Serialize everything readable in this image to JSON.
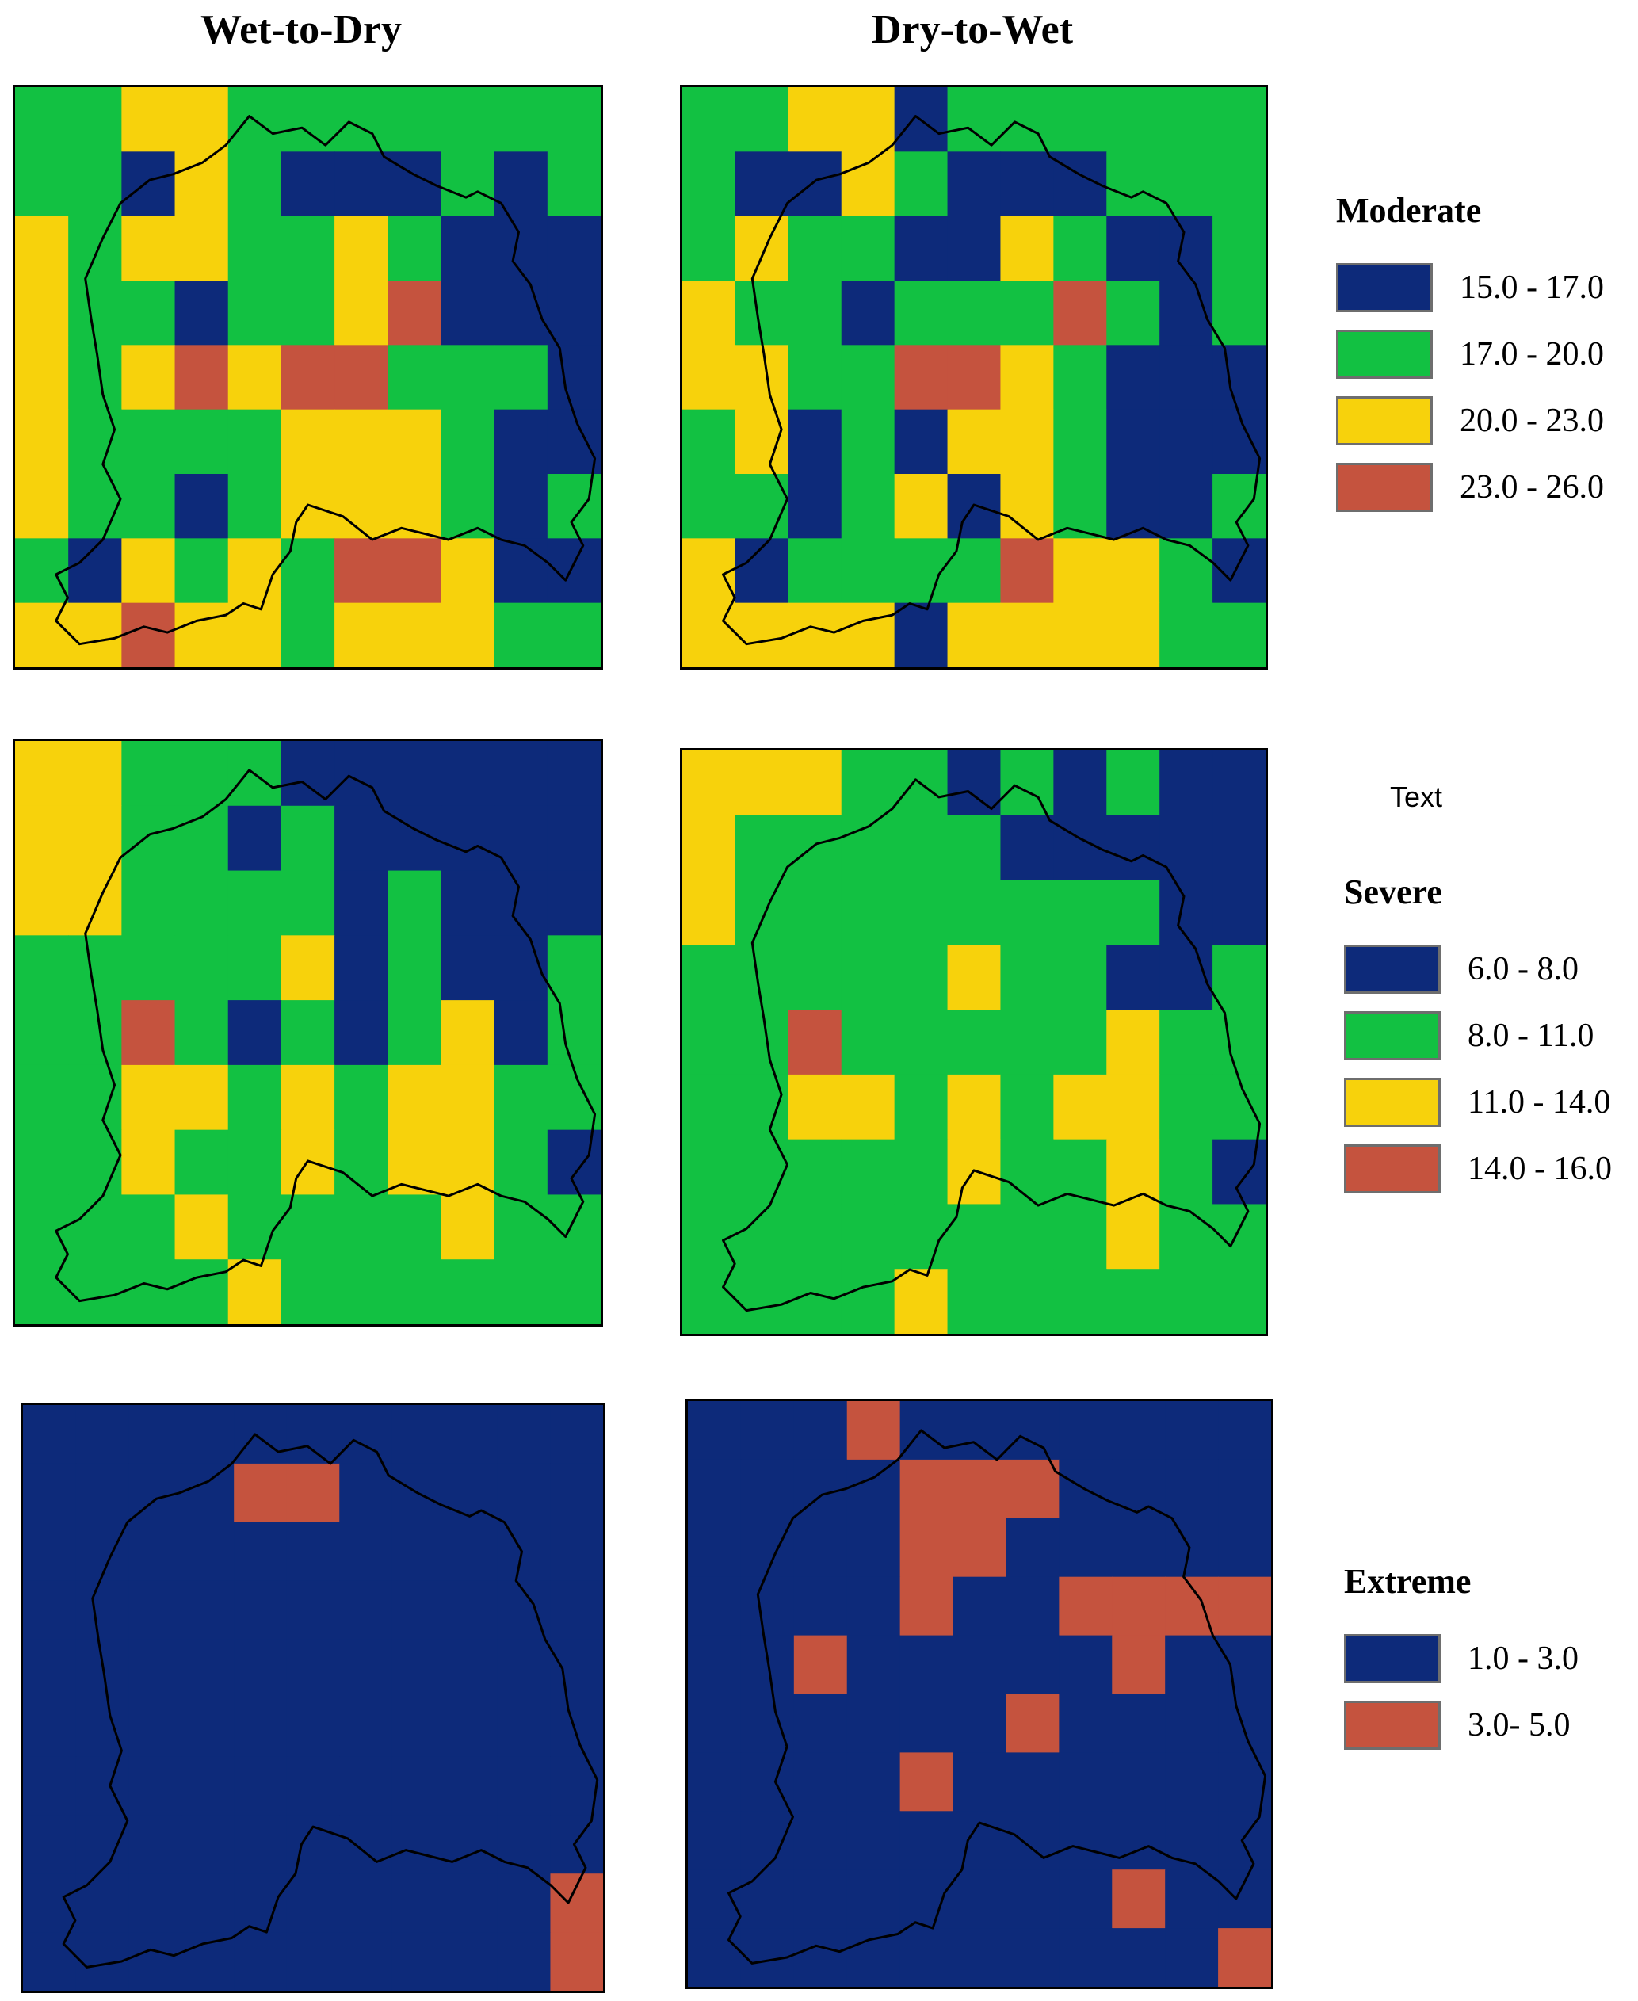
{
  "columns": [
    "Wet-to-Dry",
    "Dry-to-Wet"
  ],
  "note": "Text",
  "colors": {
    "B": "#0d2a7a",
    "G": "#12c142",
    "Y": "#f7d20c",
    "R": "#c5533e"
  },
  "legends": [
    {
      "title": "Moderate",
      "items": [
        {
          "color": "#0d2a7a",
          "label": "15.0 - 17.0"
        },
        {
          "color": "#12c142",
          "label": "17.0 - 20.0"
        },
        {
          "color": "#f7d20c",
          "label": "20.0 - 23.0"
        },
        {
          "color": "#c5533e",
          "label": "23.0 - 26.0"
        }
      ]
    },
    {
      "title": "Severe",
      "items": [
        {
          "color": "#0d2a7a",
          "label": "6.0 - 8.0"
        },
        {
          "color": "#12c142",
          "label": "8.0 - 11.0"
        },
        {
          "color": "#f7d20c",
          "label": "11.0 - 14.0"
        },
        {
          "color": "#c5533e",
          "label": "14.0 - 16.0"
        }
      ]
    },
    {
      "title": "Extreme",
      "items": [
        {
          "color": "#0d2a7a",
          "label": "1.0 - 3.0"
        },
        {
          "color": "#c5533e",
          "label": "3.0- 5.0"
        }
      ]
    }
  ],
  "maps": [
    {
      "row": "Moderate",
      "column": "Wet-to-Dry",
      "grid": [
        "GGYYGGGGGGG",
        "GGBYGBBBGBG",
        "YGYYGGYGBBB",
        "YGGBGGYRBBB",
        "YGYRYRRGGGB",
        "YGGGGYYYGBB",
        "YGGBGYYYGBG",
        "GBYGYGRRYBB",
        "YYRYYGYYYGG"
      ]
    },
    {
      "row": "Moderate",
      "column": "Dry-to-Wet",
      "grid": [
        "GGYYBGGGGGG",
        "GBBYGBBBGGG",
        "GYGGBBYGBBG",
        "YGGBGGGRGBG",
        "YYGGRRYGBBB",
        "GYBGBYYGBBB",
        "GGBGYBYGBBG",
        "YBGGGGRYYGB",
        "YYYYBYYYYGG"
      ]
    },
    {
      "row": "Severe",
      "column": "Wet-to-Dry",
      "grid": [
        "YYGGGBBBBBB",
        "YYGGBGBBBBB",
        "YYGGGGBGBBB",
        "GGGGGYBGBBG",
        "GGRGBGBGYBG",
        "GGYYGYGYYGG",
        "GGYGGYGYYGB",
        "GGGYGGGGYGG",
        "GGGGYGGGGGG"
      ]
    },
    {
      "row": "Severe",
      "column": "Dry-to-Wet",
      "grid": [
        "YYYGGBGBGBB",
        "YGGGGGBBBBB",
        "YGGGGGGGGBB",
        "GGGGGYGGBBG",
        "GGRGGGGGYGG",
        "GGYYGYGYYGG",
        "GGGGGYGGYGB",
        "GGGGGGGGYGG",
        "GGGGYGGGGGG"
      ]
    },
    {
      "row": "Extreme",
      "column": "Wet-to-Dry",
      "grid": [
        "BBBBBBBBBBB",
        "BBBBRRBBBBB",
        "BBBBBBBBBBB",
        "BBBBBBBBBBB",
        "BBBBBBBBBBB",
        "BBBBBBBBBBB",
        "BBBBBBBBBBB",
        "BBBBBBBBBBB",
        "BBBBBBBBBBR",
        "BBBBBBBBBBR"
      ]
    },
    {
      "row": "Extreme",
      "column": "Dry-to-Wet",
      "grid": [
        "BBBRBBBBBBB",
        "BBBBRRRBBBB",
        "BBBBRRBBBBB",
        "BBBBRBBRRRR",
        "BBRBBBBBRBB",
        "BBBBBBRBBBB",
        "BBBBRBBBBBB",
        "BBBBBBBBBBB",
        "BBBBBBBBRBB",
        "BBBBBBBBBBR"
      ]
    }
  ]
}
